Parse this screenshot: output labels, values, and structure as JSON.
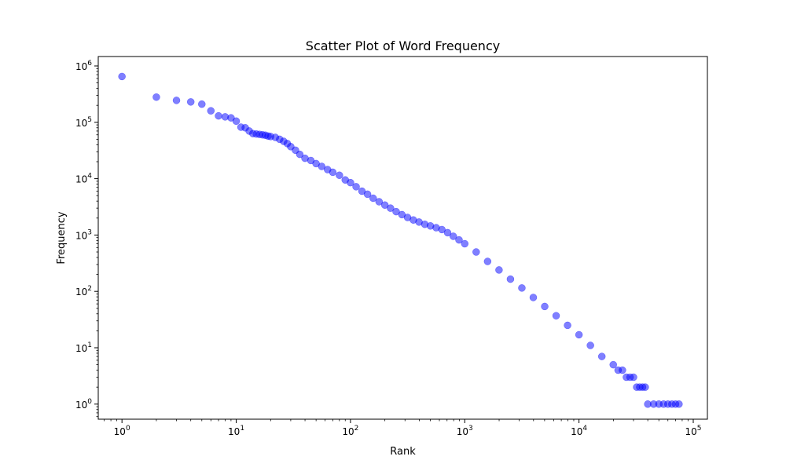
{
  "chart_data": {
    "type": "scatter",
    "title": "Scatter Plot of Word Frequency",
    "xlabel": "Rank",
    "ylabel": "Frequency",
    "xscale": "log",
    "yscale": "log",
    "xlim": [
      0.62,
      133000
    ],
    "ylim": [
      0.54,
      1470000
    ],
    "grid": false,
    "marker_color": "#0000ff",
    "marker_alpha": 0.5,
    "x_ticks": [
      {
        "base": "10",
        "exp": "0",
        "value": 1
      },
      {
        "base": "10",
        "exp": "1",
        "value": 10
      },
      {
        "base": "10",
        "exp": "2",
        "value": 100
      },
      {
        "base": "10",
        "exp": "3",
        "value": 1000
      },
      {
        "base": "10",
        "exp": "4",
        "value": 10000
      },
      {
        "base": "10",
        "exp": "5",
        "value": 100000
      }
    ],
    "y_ticks": [
      {
        "base": "10",
        "exp": "0",
        "value": 1
      },
      {
        "base": "10",
        "exp": "1",
        "value": 10
      },
      {
        "base": "10",
        "exp": "2",
        "value": 100
      },
      {
        "base": "10",
        "exp": "3",
        "value": 1000
      },
      {
        "base": "10",
        "exp": "4",
        "value": 10000
      },
      {
        "base": "10",
        "exp": "5",
        "value": 100000
      },
      {
        "base": "10",
        "exp": "6",
        "value": 1000000
      }
    ],
    "series": [
      {
        "x": [
          1,
          2,
          3,
          4,
          5,
          6,
          7,
          8,
          9,
          10,
          11,
          12,
          13,
          14,
          15,
          16,
          17,
          18,
          19,
          20,
          22,
          24,
          26,
          28,
          30,
          33,
          36,
          40,
          45,
          50,
          56,
          63,
          70,
          80,
          90,
          100,
          112,
          126,
          141,
          158,
          178,
          200,
          224,
          251,
          282,
          316,
          355,
          398,
          447,
          501,
          562,
          631,
          708,
          794,
          891,
          1000,
          1259,
          1585,
          1995,
          2512,
          3162,
          3981,
          5012,
          6310,
          7943,
          10000,
          12589,
          15849,
          19953,
          22000,
          24000,
          26000,
          28000,
          30000,
          32000,
          34000,
          36000,
          38000,
          40000,
          45000,
          50000,
          55000,
          60000,
          65000,
          70000,
          75000
        ],
        "y": [
          650000,
          280000,
          245000,
          230000,
          210000,
          160000,
          130000,
          125000,
          120000,
          105000,
          82000,
          80000,
          70000,
          63000,
          62000,
          61000,
          60000,
          59000,
          57000,
          56000,
          54000,
          50000,
          46000,
          42000,
          37000,
          32000,
          27000,
          23000,
          21000,
          18500,
          16500,
          14500,
          13000,
          11500,
          9500,
          8500,
          7200,
          6000,
          5300,
          4500,
          3900,
          3400,
          3000,
          2600,
          2300,
          2050,
          1850,
          1700,
          1550,
          1450,
          1350,
          1250,
          1100,
          950,
          820,
          700,
          500,
          340,
          240,
          165,
          115,
          78,
          54,
          37,
          25,
          17,
          11,
          7,
          5,
          4,
          4,
          3,
          3,
          3,
          2,
          2,
          2,
          2,
          1,
          1,
          1,
          1,
          1,
          1,
          1,
          1
        ]
      }
    ]
  }
}
